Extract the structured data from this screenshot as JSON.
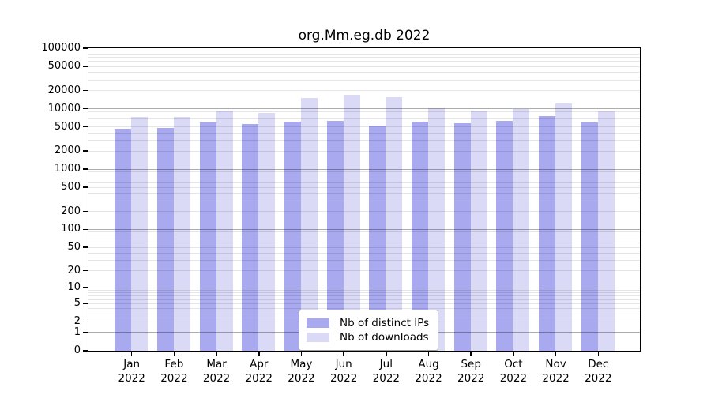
{
  "title": "org.Mm.eg.db 2022",
  "colors": {
    "distinct_ips_bar": "#a9a9f0",
    "downloads_bar": "#dadaf7",
    "grid_major": "#adadad",
    "grid_minor": "#e6e6e6",
    "axis": "#000000",
    "background": "#ffffff"
  },
  "legend": {
    "entries": [
      {
        "key": "distinct_ips",
        "label": "Nb of distinct IPs"
      },
      {
        "key": "downloads",
        "label": "Nb of downloads"
      }
    ]
  },
  "y_axis": {
    "tick_labels": [
      100000,
      50000,
      20000,
      10000,
      5000,
      2000,
      1000,
      500,
      200,
      100,
      50,
      20,
      10,
      5,
      2,
      1,
      0
    ],
    "max": 100000,
    "scale": "log10(value+1)"
  },
  "x_axis": {
    "year_label": "2022"
  },
  "chart_data": {
    "type": "bar",
    "title": "org.Mm.eg.db 2022",
    "categories": [
      "Jan",
      "Feb",
      "Mar",
      "Apr",
      "May",
      "Jun",
      "Jul",
      "Aug",
      "Sep",
      "Oct",
      "Nov",
      "Dec"
    ],
    "category_year": "2022",
    "series": [
      {
        "name": "Nb of distinct IPs",
        "color": "#a9a9f0",
        "values": [
          4700,
          4850,
          5950,
          5600,
          6050,
          6350,
          5300,
          6050,
          5750,
          6300,
          7450,
          5850
        ]
      },
      {
        "name": "Nb of downloads",
        "color": "#dadaf7",
        "values": [
          7400,
          7400,
          9250,
          8500,
          15200,
          17100,
          15400,
          10300,
          9400,
          10000,
          12100,
          9100
        ]
      }
    ],
    "xlabel": "",
    "ylabel": "",
    "ylim": [
      0,
      100000
    ],
    "yscale": "log1p",
    "grid": true,
    "legend_position": "bottom-center"
  }
}
